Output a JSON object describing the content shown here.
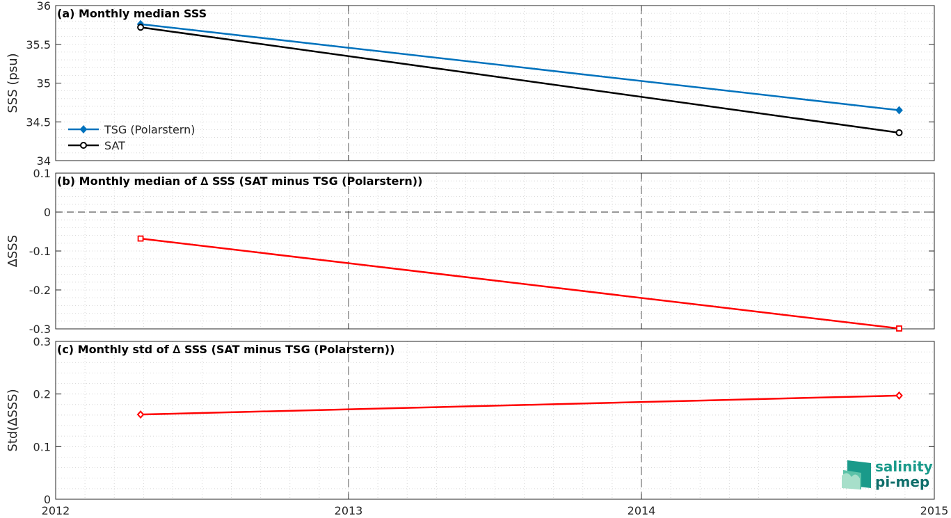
{
  "chart_data": [
    {
      "panel": "a",
      "type": "line",
      "title": "(a) Monthly median SSS",
      "ylabel": "SSS (psu)",
      "xlim": [
        2012,
        2015
      ],
      "ylim": [
        34,
        36
      ],
      "xticks": [
        "2012",
        "2013",
        "2014",
        "2015"
      ],
      "yticks": [
        "34",
        "34.5",
        "35",
        "35.5",
        "36"
      ],
      "ytick_values": [
        34,
        34.5,
        35,
        35.5,
        36
      ],
      "grid": true,
      "legend_placement": "lower-left",
      "series": [
        {
          "name": "TSG (Polarstern)",
          "color": "#0072BD",
          "marker": "diamond-filled",
          "points": [
            {
              "x": 2012.29,
              "y": 35.76
            },
            {
              "x": 2014.88,
              "y": 34.65
            }
          ]
        },
        {
          "name": "SAT",
          "color": "#000000",
          "marker": "circle-open",
          "points": [
            {
              "x": 2012.29,
              "y": 35.72
            },
            {
              "x": 2014.88,
              "y": 34.36
            }
          ]
        }
      ]
    },
    {
      "panel": "b",
      "type": "line",
      "title": "(b) Monthly median of ∆ SSS (SAT minus TSG (Polarstern))",
      "ylabel": "∆SSS",
      "xlim": [
        2012,
        2015
      ],
      "ylim": [
        -0.3,
        0.1
      ],
      "xticks": [
        "2012",
        "2013",
        "2014",
        "2015"
      ],
      "yticks": [
        "-0.3",
        "-0.2",
        "-0.1",
        "0",
        "0.1"
      ],
      "ytick_values": [
        -0.3,
        -0.2,
        -0.1,
        0,
        0.1
      ],
      "grid": true,
      "zero_line": true,
      "series": [
        {
          "color": "#FF0000",
          "marker": "square-open",
          "points": [
            {
              "x": 2012.29,
              "y": -0.068
            },
            {
              "x": 2014.88,
              "y": -0.299
            }
          ]
        }
      ]
    },
    {
      "panel": "c",
      "type": "line",
      "title": "(c) Monthly std of ∆ SSS (SAT minus TSG (Polarstern))",
      "ylabel": "Std(∆SSS)",
      "xlim": [
        2012,
        2015
      ],
      "ylim": [
        0,
        0.3
      ],
      "xticks": [
        "2012",
        "2013",
        "2014",
        "2015"
      ],
      "yticks": [
        "0",
        "0.1",
        "0.2",
        "0.3"
      ],
      "ytick_values": [
        0,
        0.1,
        0.2,
        0.3
      ],
      "grid": true,
      "series": [
        {
          "color": "#FF0000",
          "marker": "diamond-open",
          "points": [
            {
              "x": 2012.29,
              "y": 0.161
            },
            {
              "x": 2014.88,
              "y": 0.197
            }
          ]
        }
      ]
    }
  ],
  "logo": {
    "line1": "salinity",
    "line2": "pi-mep"
  }
}
